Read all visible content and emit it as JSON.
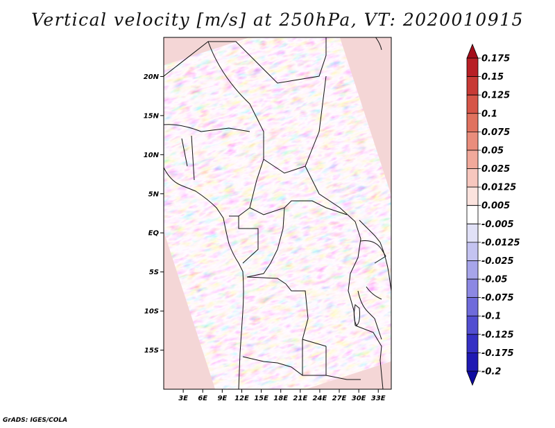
{
  "title": "Vertical velocity [m/s] at 250hPa, VT: 2020010915",
  "footer": "GrADS: IGES/COLA",
  "lat_labels": [
    "20N",
    "15N",
    "10N",
    "5N",
    "EQ",
    "5S",
    "10S",
    "15S"
  ],
  "lat_values": [
    20,
    15,
    10,
    5,
    0,
    -5,
    -10,
    -15
  ],
  "lon_labels": [
    "3E",
    "6E",
    "9E",
    "12E",
    "15E",
    "18E",
    "21E",
    "24E",
    "27E",
    "30E",
    "33E"
  ],
  "lon_values": [
    3,
    6,
    9,
    12,
    15,
    18,
    21,
    24,
    27,
    30,
    33
  ],
  "map_extent": {
    "lon_min": 0,
    "lon_max": 35,
    "lat_min": -20,
    "lat_max": 25
  },
  "colorbar": {
    "labels": [
      "0.175",
      "0.15",
      "0.125",
      "0.1",
      "0.075",
      "0.05",
      "0.025",
      "0.0125",
      "0.005",
      "-0.005",
      "-0.0125",
      "-0.025",
      "-0.05",
      "-0.075",
      "-0.1",
      "-0.125",
      "-0.175",
      "-0.2"
    ],
    "colors": [
      "#a30d1a",
      "#b81f25",
      "#c83a35",
      "#d65548",
      "#e0725f",
      "#e98d7c",
      "#f1a99b",
      "#f7c7be",
      "#fbe3de",
      "#ffffff",
      "#e1e1f7",
      "#c4c3f1",
      "#a7a5ea",
      "#8c88e3",
      "#6f6bdb",
      "#524ed1",
      "#3530c4",
      "#1f1ab3",
      "#0f0aa0"
    ]
  }
}
